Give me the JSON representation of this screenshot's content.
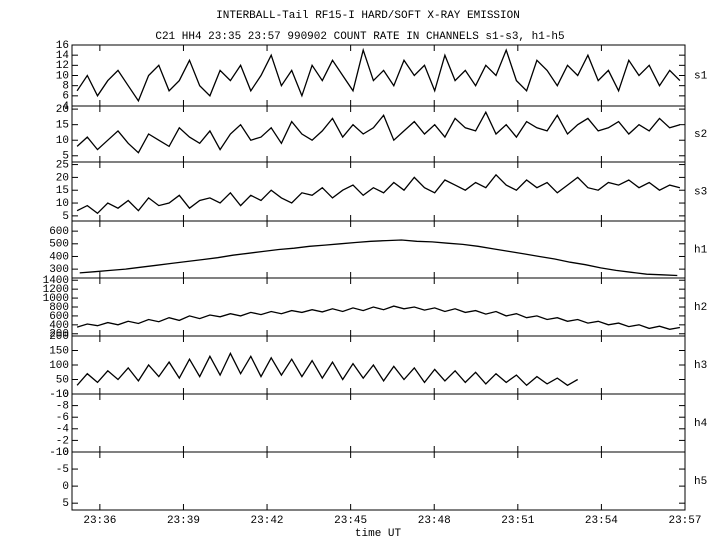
{
  "chart_data": {
    "type": "line",
    "title": "INTERBALL-Tail RF15-I HARD/SOFT X-RAY EMISSION",
    "subtitle": "C21 HH4 23:35 23:57 990902  COUNT RATE IN CHANNELS s1-s3, h1-h5",
    "x_label": "time UT",
    "xlim": [
      "23:35",
      "23:57"
    ],
    "xticks": [
      "23:36",
      "23:39",
      "23:42",
      "23:45",
      "23:48",
      "23:51",
      "23:54",
      "23:57"
    ],
    "series": [
      {
        "name": "s1",
        "color": "#000000",
        "ylim": [
          4,
          16
        ],
        "yticks": [
          4,
          6,
          8,
          10,
          12,
          14,
          16
        ],
        "values": [
          7,
          10,
          6,
          9,
          11,
          8,
          5,
          10,
          12,
          7,
          9,
          13,
          8,
          6,
          11,
          9,
          12,
          7,
          10,
          14,
          8,
          11,
          6,
          12,
          9,
          13,
          10,
          7,
          15,
          9,
          11,
          8,
          13,
          10,
          12,
          7,
          14,
          9,
          11,
          8,
          12,
          10,
          15,
          9,
          7,
          13,
          11,
          8,
          12,
          10,
          14,
          9,
          11,
          7,
          13,
          10,
          12,
          8,
          11,
          9
        ]
      },
      {
        "name": "s2",
        "color": "#000000",
        "ylim": [
          3,
          21
        ],
        "yticks": [
          5,
          10,
          15,
          20
        ],
        "values": [
          8,
          11,
          7,
          10,
          13,
          9,
          6,
          12,
          10,
          8,
          14,
          11,
          9,
          13,
          7,
          12,
          15,
          10,
          11,
          14,
          9,
          16,
          12,
          10,
          13,
          17,
          11,
          15,
          12,
          14,
          18,
          10,
          13,
          16,
          12,
          15,
          11,
          17,
          14,
          13,
          19,
          12,
          15,
          11,
          16,
          14,
          13,
          18,
          12,
          15,
          17,
          13,
          14,
          16,
          12,
          15,
          13,
          17,
          14,
          15
        ]
      },
      {
        "name": "s3",
        "color": "#000000",
        "ylim": [
          3,
          26
        ],
        "yticks": [
          5,
          10,
          15,
          20,
          25
        ],
        "values": [
          7,
          9,
          6,
          10,
          8,
          11,
          7,
          12,
          9,
          10,
          13,
          8,
          11,
          12,
          10,
          14,
          9,
          13,
          11,
          15,
          12,
          10,
          14,
          13,
          16,
          12,
          15,
          17,
          13,
          16,
          14,
          18,
          15,
          20,
          16,
          14,
          19,
          17,
          15,
          18,
          16,
          21,
          17,
          15,
          19,
          16,
          18,
          14,
          17,
          20,
          16,
          15,
          18,
          17,
          19,
          16,
          18,
          15,
          17,
          16
        ]
      },
      {
        "name": "h1",
        "color": "#000000",
        "ylim": [
          230,
          680
        ],
        "yticks": [
          300,
          400,
          500,
          600
        ],
        "values": [
          270,
          280,
          290,
          300,
          315,
          330,
          345,
          360,
          375,
          390,
          410,
          425,
          440,
          455,
          465,
          480,
          490,
          500,
          510,
          520,
          525,
          530,
          520,
          515,
          505,
          495,
          480,
          460,
          440,
          420,
          400,
          380,
          355,
          335,
          310,
          290,
          275,
          260,
          255,
          250
        ]
      },
      {
        "name": "h2",
        "color": "#000000",
        "ylim": [
          150,
          1450
        ],
        "yticks": [
          200,
          400,
          600,
          800,
          1000,
          1200,
          1400
        ],
        "values": [
          350,
          420,
          380,
          450,
          400,
          480,
          430,
          520,
          470,
          560,
          500,
          600,
          540,
          620,
          580,
          650,
          600,
          680,
          630,
          700,
          650,
          720,
          680,
          740,
          690,
          760,
          700,
          780,
          720,
          800,
          740,
          820,
          760,
          800,
          730,
          780,
          700,
          760,
          680,
          720,
          640,
          700,
          600,
          650,
          560,
          600,
          520,
          560,
          480,
          520,
          440,
          480,
          400,
          440,
          360,
          400,
          320,
          370,
          300,
          340
        ]
      },
      {
        "name": "h3",
        "color": "#000000",
        "ylim": [
          0,
          200
        ],
        "yticks": [
          0,
          50,
          100,
          150,
          200
        ],
        "values": [
          30,
          70,
          40,
          80,
          50,
          90,
          45,
          100,
          60,
          110,
          55,
          120,
          60,
          130,
          65,
          140,
          70,
          130,
          60,
          125,
          65,
          120,
          60,
          115,
          55,
          110,
          50,
          105,
          55,
          100,
          45,
          95,
          50,
          90,
          40,
          85,
          45,
          80,
          40,
          75,
          35,
          70,
          40,
          65,
          30,
          60,
          35,
          55,
          30,
          50,
          null,
          null,
          null,
          null,
          null,
          null,
          null,
          null,
          null,
          null
        ]
      },
      {
        "name": "h4",
        "color": "#000000",
        "ylim": [
          0,
          -10
        ],
        "yticks": [
          -10,
          -8,
          -6,
          -4,
          -2,
          0
        ]
      },
      {
        "name": "h5",
        "color": "#000000",
        "ylim": [
          7,
          -10
        ],
        "yticks": [
          -10,
          -5,
          0,
          5
        ]
      }
    ]
  }
}
